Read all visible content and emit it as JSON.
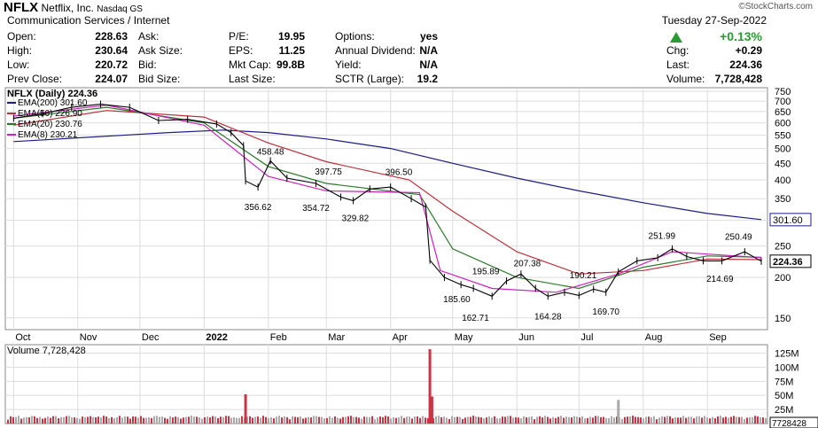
{
  "header": {
    "symbol": "NFLX",
    "company": "Netflix, Inc.",
    "exchange": "Nasdaq GS",
    "watermark": "©StockCharts.com",
    "sector": "Communication Services / Internet",
    "date": "Tuesday  27-Sep-2022",
    "change_pct": "+0.13%",
    "stats": [
      {
        "label": "Open:",
        "value": "228.63"
      },
      {
        "label": "High:",
        "value": "230.64"
      },
      {
        "label": "Low:",
        "value": "220.72"
      },
      {
        "label": "Prev Close:",
        "value": "224.07"
      },
      {
        "label": "Ask:",
        "value": ""
      },
      {
        "label": "Ask Size:",
        "value": ""
      },
      {
        "label": "Bid:",
        "value": ""
      },
      {
        "label": "Bid Size:",
        "value": ""
      },
      {
        "label": "P/E:",
        "value": "19.95"
      },
      {
        "label": "EPS:",
        "value": "11.25"
      },
      {
        "label": "Mkt Cap:",
        "value": "99.8B"
      },
      {
        "label": "Last Size:",
        "value": ""
      },
      {
        "label": "Options:",
        "value": "yes"
      },
      {
        "label": "Annual Dividend:",
        "value": "N/A"
      },
      {
        "label": "Yield:",
        "value": "N/A"
      },
      {
        "label": "SCTR (Large):",
        "value": "19.2"
      },
      {
        "label": "Chg:",
        "value": "+0.29"
      },
      {
        "label": "Last:",
        "value": "224.36"
      },
      {
        "label": "Volume:",
        "value": "7,728,428"
      }
    ]
  },
  "colors": {
    "up": "#2a9b33",
    "ema200": "#1c1c8a",
    "ema50": "#c0303a",
    "ema20": "#2a7a2a",
    "ema8": "#d020c0",
    "price": "#000000",
    "volume_up": "#aaaaaa",
    "volume_down": "#cc3344",
    "grid": "#dddddd"
  },
  "chart_data": [
    {
      "type": "line",
      "title": "NFLX (Daily) 224.36",
      "scale": "log",
      "x_labels": [
        "Oct",
        "Nov",
        "Dec",
        "2022",
        "Feb",
        "Mar",
        "Apr",
        "May",
        "Jun",
        "Jul",
        "Aug",
        "Sep"
      ],
      "y_ticks": [
        150,
        200,
        250,
        300,
        350,
        400,
        450,
        500,
        550,
        600,
        650,
        700,
        750
      ],
      "ylim": [
        138,
        770
      ],
      "series": [
        {
          "name": "NFLX (Daily) 224.36",
          "color": "#000000",
          "x": [
            "2021-10-01",
            "2021-10-15",
            "2021-10-29",
            "2021-11-12",
            "2021-11-26",
            "2021-12-10",
            "2021-12-24",
            "2022-01-07",
            "2022-01-14",
            "2022-01-20",
            "2022-01-21",
            "2022-01-27",
            "2022-02-02",
            "2022-02-10",
            "2022-02-24",
            "2022-03-08",
            "2022-03-14",
            "2022-03-22",
            "2022-04-01",
            "2022-04-11",
            "2022-04-18",
            "2022-04-20",
            "2022-04-27",
            "2022-05-05",
            "2022-05-11",
            "2022-05-20",
            "2022-05-27",
            "2022-06-03",
            "2022-06-10",
            "2022-06-16",
            "2022-06-24",
            "2022-07-01",
            "2022-07-08",
            "2022-07-14",
            "2022-07-20",
            "2022-07-29",
            "2022-08-08",
            "2022-08-15",
            "2022-08-22",
            "2022-08-30",
            "2022-09-08",
            "2022-09-19",
            "2022-09-27"
          ],
          "y": [
            620,
            640,
            670,
            685,
            670,
            610,
            615,
            595,
            560,
            510,
            397,
            380,
            458,
            405,
            390,
            354,
            345,
            375,
            380,
            350,
            330,
            226,
            200,
            190,
            185,
            175,
            195,
            205,
            185,
            175,
            180,
            176,
            184,
            180,
            208,
            225,
            230,
            245,
            232,
            225,
            225,
            240,
            224.36
          ]
        },
        {
          "name": "EMA(200) 301.60",
          "color": "#1c1c8a",
          "x": [
            "2021-10-01",
            "2021-12-15",
            "2022-01-10",
            "2022-02-01",
            "2022-03-01",
            "2022-04-01",
            "2022-05-01",
            "2022-06-01",
            "2022-07-01",
            "2022-08-01",
            "2022-09-01",
            "2022-09-27"
          ],
          "y": [
            525,
            560,
            570,
            560,
            535,
            500,
            450,
            405,
            370,
            340,
            315,
            301.6
          ]
        },
        {
          "name": "EMA(50) 226.90",
          "color": "#c0303a",
          "x": [
            "2021-10-01",
            "2021-11-15",
            "2022-01-01",
            "2022-02-01",
            "2022-03-01",
            "2022-04-10",
            "2022-05-01",
            "2022-06-01",
            "2022-07-01",
            "2022-08-01",
            "2022-09-01",
            "2022-09-27"
          ],
          "y": [
            590,
            655,
            625,
            520,
            455,
            400,
            320,
            240,
            205,
            210,
            228,
            226.9
          ]
        },
        {
          "name": "EMA(20) 230.76",
          "color": "#2a7a2a",
          "x": [
            "2021-10-01",
            "2021-11-15",
            "2022-01-01",
            "2022-02-01",
            "2022-03-01",
            "2022-04-15",
            "2022-05-01",
            "2022-06-01",
            "2022-07-01",
            "2022-08-01",
            "2022-09-01",
            "2022-09-27"
          ],
          "y": [
            620,
            670,
            600,
            440,
            390,
            360,
            245,
            200,
            185,
            215,
            233,
            230.76
          ]
        },
        {
          "name": "EMA(8) 230.21",
          "color": "#d020c0",
          "x": [
            "2021-10-01",
            "2021-11-15",
            "2022-01-01",
            "2022-02-01",
            "2022-03-01",
            "2022-04-15",
            "2022-04-25",
            "2022-05-20",
            "2022-06-20",
            "2022-07-20",
            "2022-08-15",
            "2022-09-27"
          ],
          "y": [
            630,
            680,
            590,
            410,
            370,
            365,
            210,
            185,
            180,
            205,
            240,
            230.21
          ]
        }
      ],
      "annotations": [
        {
          "text": "458.48",
          "x": "2022-02-02",
          "y": 458.48,
          "pos": "above"
        },
        {
          "text": "356.62",
          "x": "2022-01-27",
          "y": 356.62,
          "pos": "below"
        },
        {
          "text": "397.75",
          "x": "2022-03-02",
          "y": 397.75,
          "pos": "above"
        },
        {
          "text": "354.72",
          "x": "2022-02-24",
          "y": 354.72,
          "pos": "below"
        },
        {
          "text": "396.50",
          "x": "2022-04-05",
          "y": 396.5,
          "pos": "above"
        },
        {
          "text": "329.82",
          "x": "2022-03-15",
          "y": 329.82,
          "pos": "below"
        },
        {
          "text": "195.89",
          "x": "2022-05-17",
          "y": 195.89,
          "pos": "above"
        },
        {
          "text": "185.60",
          "x": "2022-05-03",
          "y": 185.6,
          "pos": "below"
        },
        {
          "text": "162.71",
          "x": "2022-05-12",
          "y": 162.71,
          "pos": "below"
        },
        {
          "text": "207.38",
          "x": "2022-06-06",
          "y": 207.38,
          "pos": "above"
        },
        {
          "text": "164.28",
          "x": "2022-06-16",
          "y": 164.28,
          "pos": "below"
        },
        {
          "text": "190.21",
          "x": "2022-07-03",
          "y": 190.21,
          "pos": "above"
        },
        {
          "text": "169.70",
          "x": "2022-07-14",
          "y": 169.7,
          "pos": "below"
        },
        {
          "text": "251.99",
          "x": "2022-08-10",
          "y": 251.99,
          "pos": "above"
        },
        {
          "text": "214.69",
          "x": "2022-09-07",
          "y": 214.69,
          "pos": "below"
        },
        {
          "text": "250.49",
          "x": "2022-09-16",
          "y": 250.49,
          "pos": "above"
        }
      ],
      "value_tags": [
        {
          "text": "301.60",
          "y": 301.6,
          "style": "ema200"
        },
        {
          "text": "224.36",
          "y": 224.36,
          "style": "price"
        }
      ]
    },
    {
      "type": "bar",
      "title": "Volume 7,728,428",
      "y_tick_labels": [
        "25M",
        "50M",
        "75M",
        "100M",
        "125M"
      ],
      "y_ticks": [
        25,
        50,
        75,
        100,
        125
      ],
      "ylim": [
        0,
        140
      ],
      "units": "M",
      "last_tag": "7728428",
      "spikes": [
        {
          "x": "2022-01-21",
          "value": 52,
          "dir": "down"
        },
        {
          "x": "2022-04-20",
          "value": 132,
          "dir": "down"
        },
        {
          "x": "2022-04-21",
          "value": 48,
          "dir": "down"
        },
        {
          "x": "2022-07-20",
          "value": 42,
          "dir": "up"
        }
      ]
    }
  ]
}
